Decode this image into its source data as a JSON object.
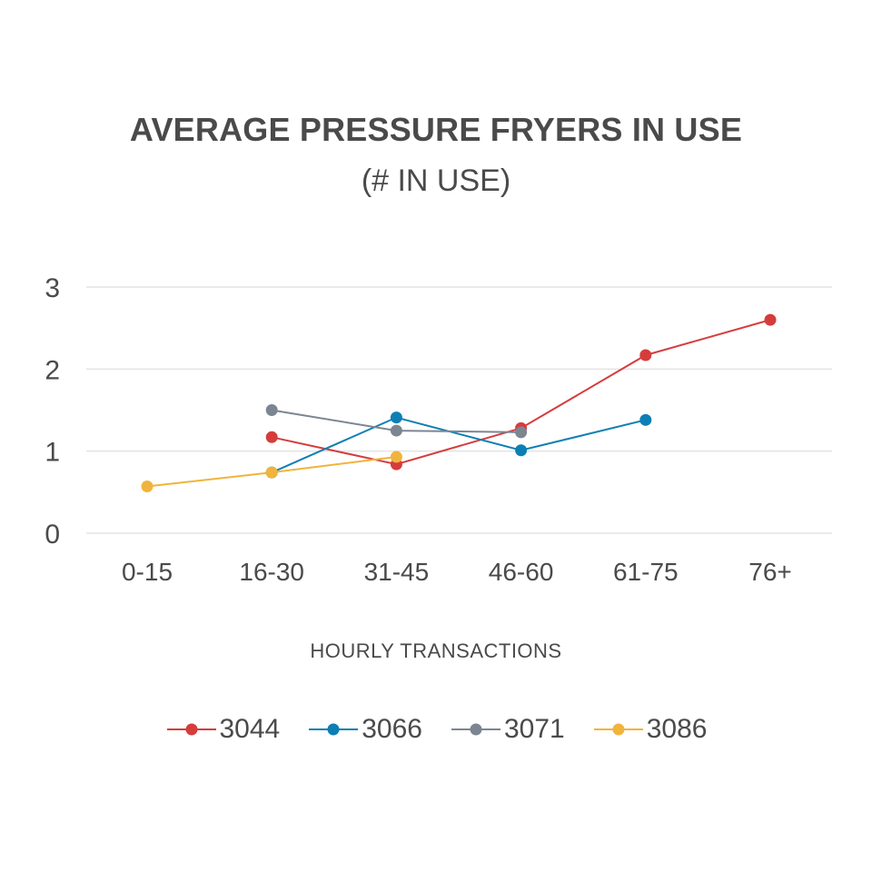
{
  "chart_data": {
    "type": "line",
    "title": "AVERAGE PRESSURE FRYERS IN USE",
    "subtitle": "(# IN USE)",
    "xlabel": "HOURLY TRANSACTIONS",
    "ylabel": "",
    "categories": [
      "0-15",
      "16-30",
      "31-45",
      "46-60",
      "61-75",
      "76+"
    ],
    "ylim": [
      0,
      3
    ],
    "yticks": [
      0,
      1,
      2,
      3
    ],
    "grid": true,
    "legend_position": "bottom",
    "series": [
      {
        "name": "3044",
        "color": "#d63c3c",
        "values": [
          null,
          1.17,
          0.84,
          1.28,
          2.17,
          2.6
        ]
      },
      {
        "name": "3066",
        "color": "#0d7fb4",
        "values": [
          null,
          0.74,
          1.41,
          1.01,
          1.38,
          null
        ]
      },
      {
        "name": "3071",
        "color": "#7c8692",
        "values": [
          null,
          1.5,
          1.25,
          1.23,
          null,
          null
        ]
      },
      {
        "name": "3086",
        "color": "#f0b43c",
        "values": [
          0.57,
          0.74,
          0.93,
          null,
          null,
          null
        ]
      }
    ]
  }
}
